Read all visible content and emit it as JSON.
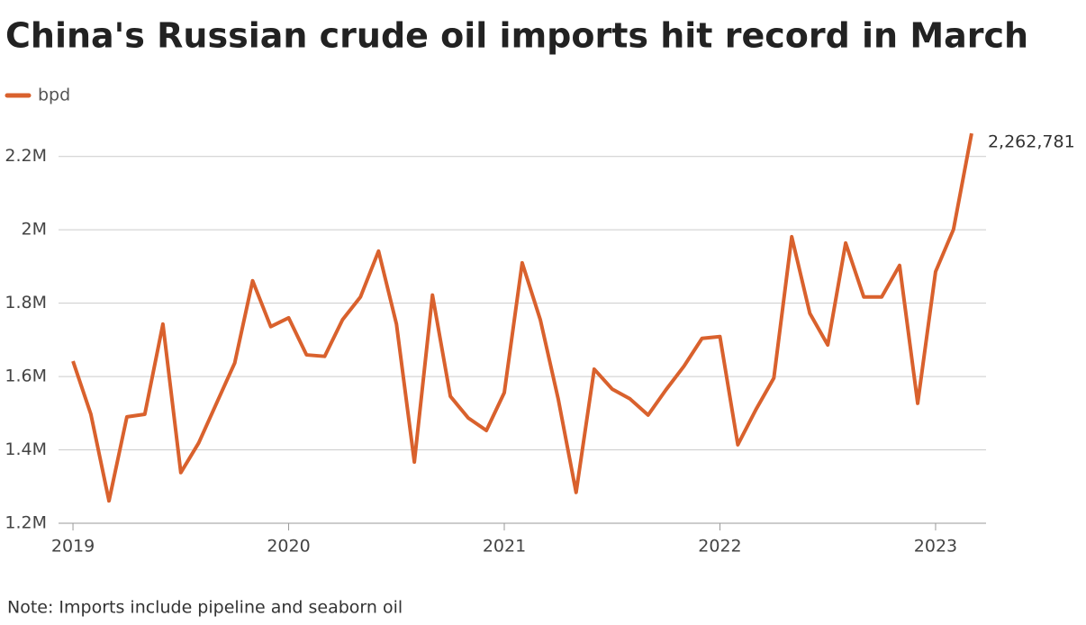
{
  "chart_data": {
    "type": "line",
    "title": "China's Russian crude oil imports hit record in March",
    "note": "Note: Imports include pipeline and seaborn oil",
    "x": [
      2019,
      2019.083,
      2019.167,
      2019.25,
      2019.333,
      2019.417,
      2019.5,
      2019.583,
      2019.667,
      2019.75,
      2019.833,
      2019.917,
      2020,
      2020.083,
      2020.167,
      2020.25,
      2020.333,
      2020.417,
      2020.5,
      2020.583,
      2020.667,
      2020.75,
      2020.833,
      2020.917,
      2021,
      2021.083,
      2021.167,
      2021.25,
      2021.333,
      2021.417,
      2021.5,
      2021.583,
      2021.667,
      2021.75,
      2021.833,
      2021.917,
      2022,
      2022.083,
      2022.167,
      2022.25,
      2022.333,
      2022.417,
      2022.5,
      2022.583,
      2022.667,
      2022.75,
      2022.833,
      2022.917,
      2023,
      2023.083,
      2023.167
    ],
    "series": [
      {
        "name": "bpd",
        "color": "#d9612d",
        "values": [
          1642000,
          1497000,
          1261000,
          1490000,
          1497000,
          1743000,
          1338000,
          1419000,
          1529000,
          1637000,
          1861000,
          1736000,
          1760000,
          1659000,
          1655000,
          1755000,
          1817000,
          1942000,
          1743000,
          1367000,
          1822000,
          1546000,
          1487000,
          1453000,
          1556000,
          1910000,
          1755000,
          1539000,
          1284000,
          1620000,
          1566000,
          1539000,
          1495000,
          1564000,
          1628000,
          1704000,
          1709000,
          1414000,
          1510000,
          1596000,
          1981000,
          1772000,
          1686000,
          1964000,
          1817000,
          1817000,
          1903000,
          1527000,
          1886000,
          2001000,
          2262781
        ],
        "value_labels": [
          null,
          null,
          null,
          null,
          null,
          null,
          null,
          null,
          null,
          null,
          null,
          null,
          null,
          null,
          null,
          null,
          null,
          null,
          null,
          null,
          null,
          null,
          null,
          null,
          null,
          null,
          null,
          null,
          null,
          null,
          null,
          null,
          null,
          null,
          null,
          null,
          null,
          null,
          null,
          null,
          null,
          null,
          null,
          null,
          null,
          null,
          null,
          null,
          null,
          null,
          "2,262,781"
        ]
      }
    ],
    "xlim": [
      2018.933,
      2023.234
    ],
    "xticks": [
      2019,
      2020,
      2021,
      2022,
      2023
    ],
    "ylim": [
      1200000,
      2300000
    ],
    "yticks": [
      {
        "value": 1200000,
        "label": "1.2M"
      },
      {
        "value": 1400000,
        "label": "1.4M"
      },
      {
        "value": 1600000,
        "label": "1.6M"
      },
      {
        "value": 1800000,
        "label": "1.8M"
      },
      {
        "value": 2000000,
        "label": "2M"
      },
      {
        "value": 2200000,
        "label": "2.2M"
      }
    ],
    "grid": true
  }
}
